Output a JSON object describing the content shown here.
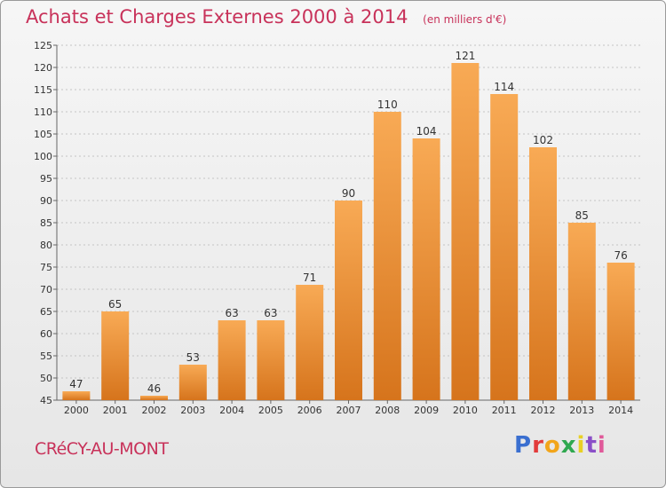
{
  "header": {
    "title": "Achats et Charges Externes 2000 à 2014",
    "unit": "(en milliers d'€)"
  },
  "footer": {
    "commune": "CRéCY-AU-MONT",
    "logo": "Proxiti",
    "logo_colors": [
      "#3a6fd0",
      "#e23b3b",
      "#f2a51a",
      "#2fa84f",
      "#e8d024",
      "#8a4fc8",
      "#e05a9a"
    ]
  },
  "colors": {
    "bar_light": "#f8aa55",
    "bar_dark": "#d6741c",
    "label": "#333333"
  },
  "chart_data": {
    "type": "bar",
    "title": "Achats et Charges Externes 2000 à 2014",
    "categories": [
      "2000",
      "2001",
      "2002",
      "2003",
      "2004",
      "2005",
      "2006",
      "2007",
      "2008",
      "2009",
      "2010",
      "2011",
      "2012",
      "2013",
      "2014"
    ],
    "values": [
      47,
      65,
      46,
      53,
      63,
      63,
      71,
      90,
      110,
      104,
      121,
      114,
      102,
      85,
      76
    ],
    "ylim": [
      45,
      125
    ],
    "yticks": [
      45,
      50,
      55,
      60,
      65,
      70,
      75,
      80,
      85,
      90,
      95,
      100,
      105,
      110,
      115,
      120,
      125
    ],
    "grid": "horizontal-dashed",
    "legend": "none"
  }
}
